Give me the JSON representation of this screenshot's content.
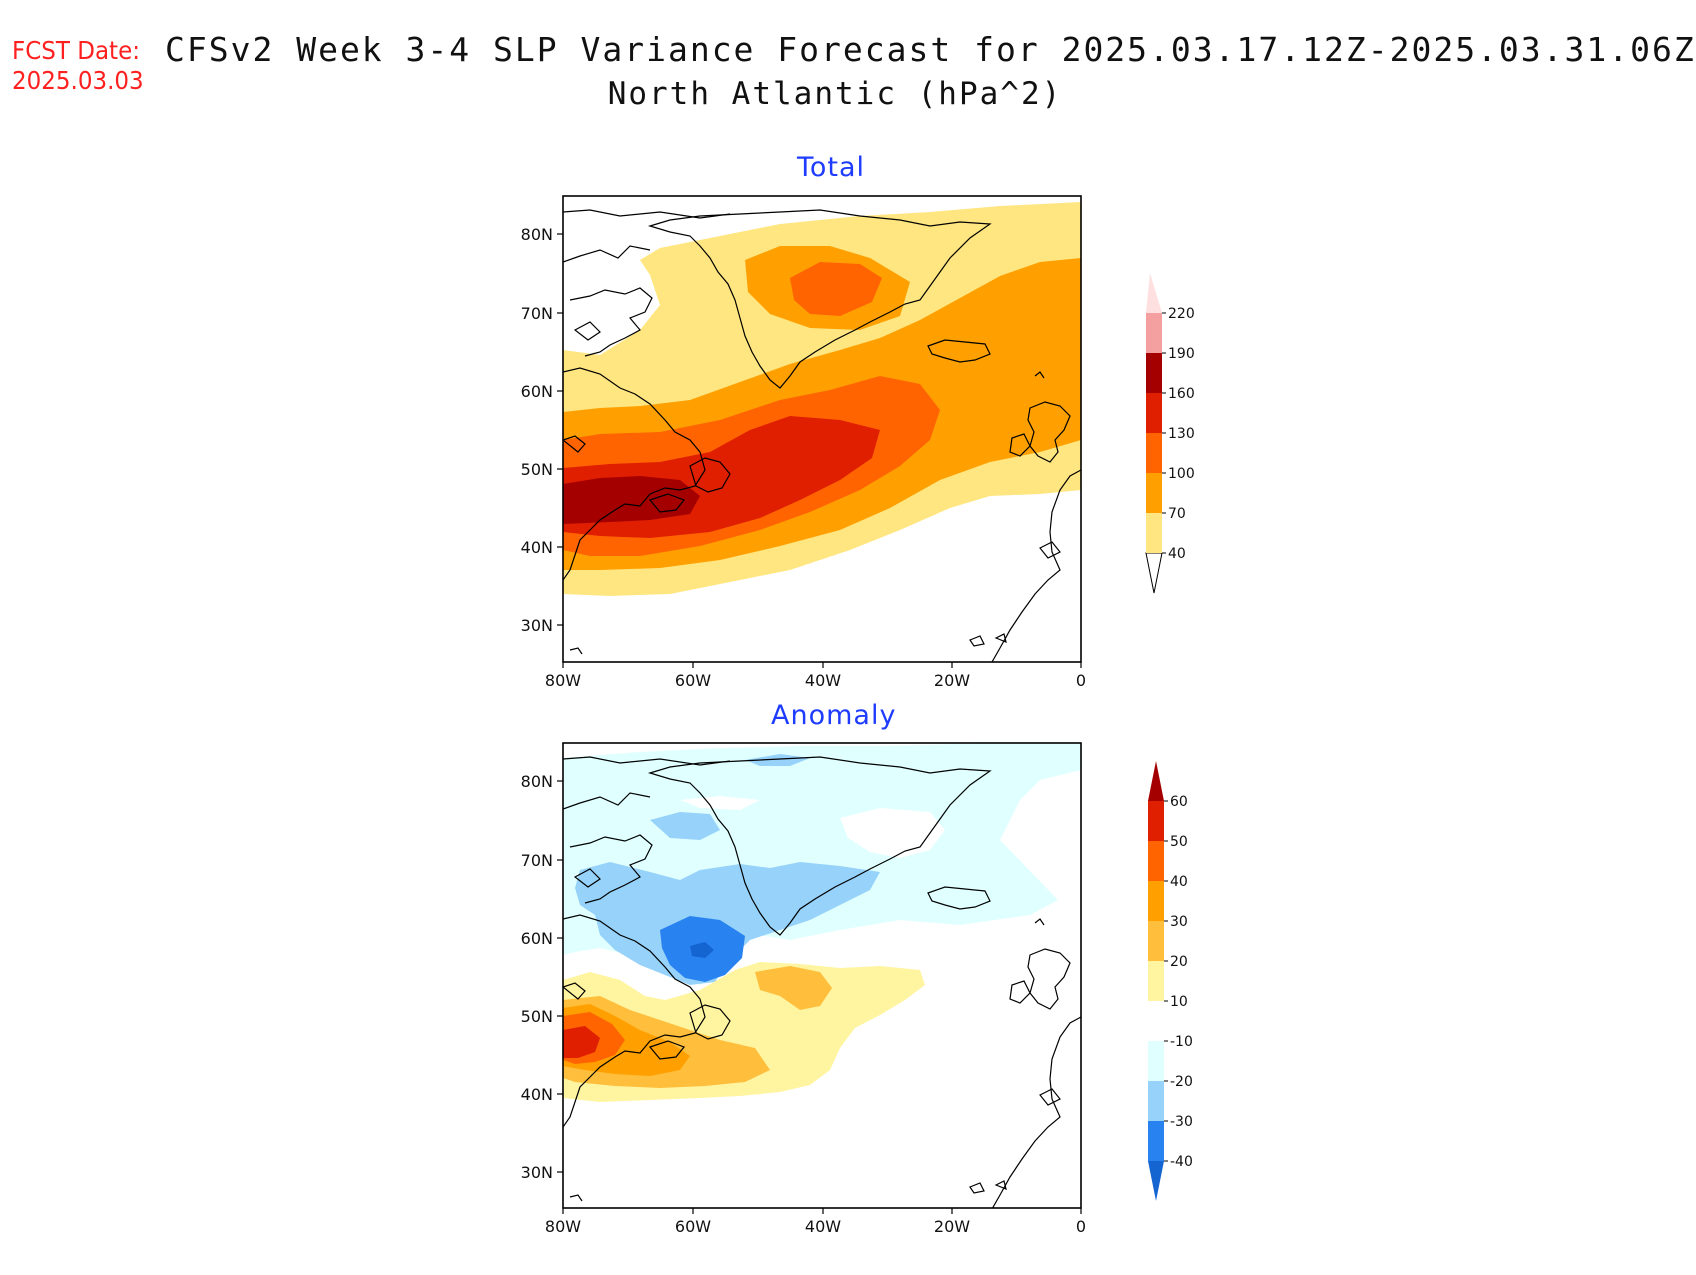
{
  "header": {
    "fcst_label": "FCST Date:",
    "fcst_date": "2025.03.03",
    "title": "CFSv2 Week 3-4 SLP Variance Forecast for 2025.03.17.12Z-2025.03.31.06Z",
    "subtitle": "North Atlantic (hPa^2)"
  },
  "panels": [
    {
      "title": "Total",
      "lat_ticks": [
        "80N",
        "70N",
        "60N",
        "50N",
        "40N",
        "30N"
      ],
      "lon_ticks": [
        "80W",
        "60W",
        "40W",
        "20W",
        "0"
      ],
      "colorbar": {
        "levels": [
          "40",
          "70",
          "100",
          "130",
          "160",
          "190",
          "220"
        ],
        "colors": [
          "#ffe680",
          "#ffa000",
          "#ff6400",
          "#e01e00",
          "#a50000",
          "#f5a0a0",
          "#ffe0e0"
        ]
      }
    },
    {
      "title": "Anomaly",
      "lat_ticks": [
        "80N",
        "70N",
        "60N",
        "50N",
        "40N",
        "30N"
      ],
      "lon_ticks": [
        "80W",
        "60W",
        "40W",
        "20W",
        "0"
      ],
      "colorbar": {
        "levels": [
          "60",
          "50",
          "40",
          "30",
          "20",
          "10",
          "-10",
          "-20",
          "-30",
          "-40"
        ],
        "colors": [
          "#a50000",
          "#e01e00",
          "#ff6400",
          "#ffa000",
          "#ffbe3c",
          "#fff5a0",
          "#ffffff",
          "#e0ffff",
          "#96d2fa",
          "#2882f0",
          "#1464d2"
        ]
      }
    }
  ],
  "colors": {
    "title_red": "#ff2020",
    "panel_title_blue": "#1e3cff"
  }
}
